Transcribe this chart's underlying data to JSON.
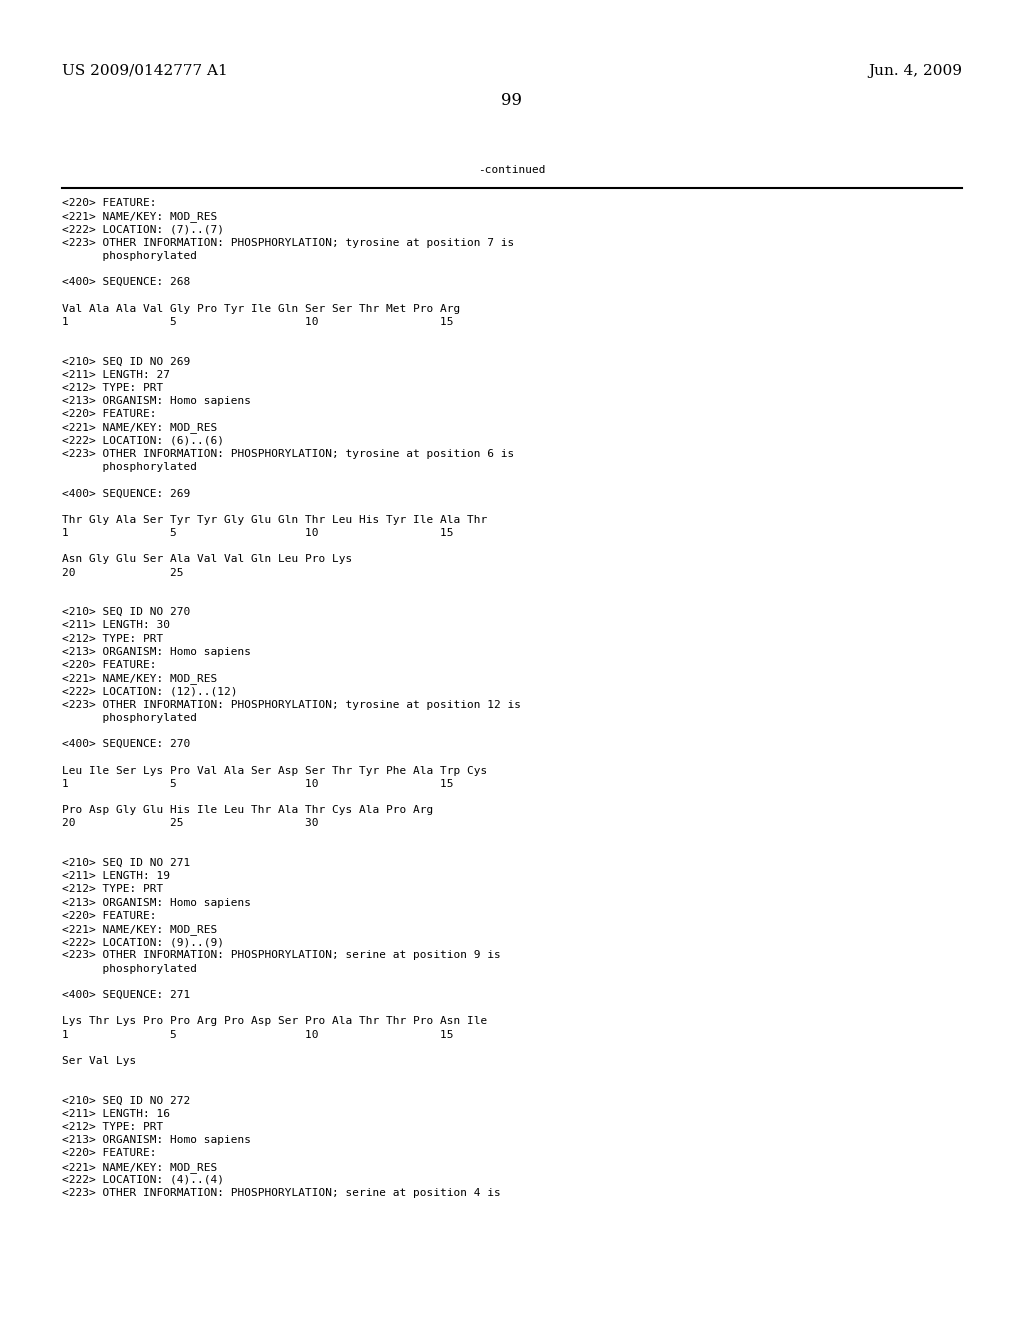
{
  "header_left": "US 2009/0142777 A1",
  "header_right": "Jun. 4, 2009",
  "page_number": "99",
  "continued_text": "-continued",
  "background_color": "#ffffff",
  "text_color": "#000000",
  "font_size_header": 11,
  "font_size_body": 8.0,
  "content_lines": [
    "<220> FEATURE:",
    "<221> NAME/KEY: MOD_RES",
    "<222> LOCATION: (7)..(7)",
    "<223> OTHER INFORMATION: PHOSPHORYLATION; tyrosine at position 7 is",
    "      phosphorylated",
    "",
    "<400> SEQUENCE: 268",
    "",
    "Val Ala Ala Val Gly Pro Tyr Ile Gln Ser Ser Thr Met Pro Arg",
    "1               5                   10                  15",
    "",
    "",
    "<210> SEQ ID NO 269",
    "<211> LENGTH: 27",
    "<212> TYPE: PRT",
    "<213> ORGANISM: Homo sapiens",
    "<220> FEATURE:",
    "<221> NAME/KEY: MOD_RES",
    "<222> LOCATION: (6)..(6)",
    "<223> OTHER INFORMATION: PHOSPHORYLATION; tyrosine at position 6 is",
    "      phosphorylated",
    "",
    "<400> SEQUENCE: 269",
    "",
    "Thr Gly Ala Ser Tyr Tyr Gly Glu Gln Thr Leu His Tyr Ile Ala Thr",
    "1               5                   10                  15",
    "",
    "Asn Gly Glu Ser Ala Val Val Gln Leu Pro Lys",
    "20              25",
    "",
    "",
    "<210> SEQ ID NO 270",
    "<211> LENGTH: 30",
    "<212> TYPE: PRT",
    "<213> ORGANISM: Homo sapiens",
    "<220> FEATURE:",
    "<221> NAME/KEY: MOD_RES",
    "<222> LOCATION: (12)..(12)",
    "<223> OTHER INFORMATION: PHOSPHORYLATION; tyrosine at position 12 is",
    "      phosphorylated",
    "",
    "<400> SEQUENCE: 270",
    "",
    "Leu Ile Ser Lys Pro Val Ala Ser Asp Ser Thr Tyr Phe Ala Trp Cys",
    "1               5                   10                  15",
    "",
    "Pro Asp Gly Glu His Ile Leu Thr Ala Thr Cys Ala Pro Arg",
    "20              25                  30",
    "",
    "",
    "<210> SEQ ID NO 271",
    "<211> LENGTH: 19",
    "<212> TYPE: PRT",
    "<213> ORGANISM: Homo sapiens",
    "<220> FEATURE:",
    "<221> NAME/KEY: MOD_RES",
    "<222> LOCATION: (9)..(9)",
    "<223> OTHER INFORMATION: PHOSPHORYLATION; serine at position 9 is",
    "      phosphorylated",
    "",
    "<400> SEQUENCE: 271",
    "",
    "Lys Thr Lys Pro Pro Arg Pro Asp Ser Pro Ala Thr Thr Pro Asn Ile",
    "1               5                   10                  15",
    "",
    "Ser Val Lys",
    "",
    "",
    "<210> SEQ ID NO 272",
    "<211> LENGTH: 16",
    "<212> TYPE: PRT",
    "<213> ORGANISM: Homo sapiens",
    "<220> FEATURE:",
    "<221> NAME/KEY: MOD_RES",
    "<222> LOCATION: (4)..(4)",
    "<223> OTHER INFORMATION: PHOSPHORYLATION; serine at position 4 is"
  ]
}
